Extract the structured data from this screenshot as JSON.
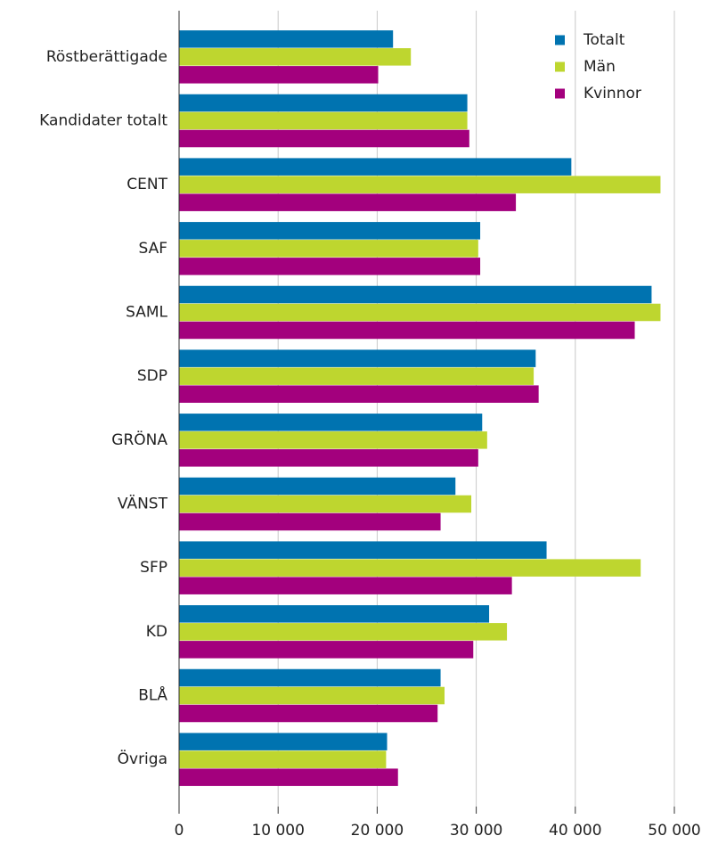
{
  "chart_data": {
    "type": "bar",
    "orientation": "horizontal",
    "categories": [
      "Röstberättigade",
      "Kandidater totalt",
      "CENT",
      "SAF",
      "SAML",
      "SDP",
      "GRÖNA",
      "VÄNST",
      "SFP",
      "KD",
      "BLÅ",
      "Övriga"
    ],
    "series": [
      {
        "name": "Totalt",
        "color": "#0073b0",
        "values": [
          21600,
          29100,
          39600,
          30400,
          47700,
          36000,
          30600,
          27900,
          37100,
          31300,
          26400,
          21000
        ]
      },
      {
        "name": "Män",
        "color": "#bed62f",
        "values": [
          23400,
          29100,
          48600,
          30200,
          48600,
          35800,
          31100,
          29500,
          46600,
          33100,
          26800,
          20900
        ]
      },
      {
        "name": "Kvinnor",
        "color": "#a3007d",
        "values": [
          20100,
          29300,
          34000,
          30400,
          46000,
          36300,
          30200,
          26400,
          33600,
          29700,
          26100,
          22100
        ]
      }
    ],
    "xlim": [
      0,
      50000
    ],
    "xticks": [
      0,
      {
        "value": 10000,
        "label": "10 000"
      },
      {
        "value": 20000,
        "label": "20 000"
      },
      {
        "value": 30000,
        "label": "30 000"
      },
      {
        "value": 40000,
        "label": "40 000"
      },
      {
        "value": 50000,
        "label": "50 000"
      }
    ],
    "grid": true,
    "legend": "top-right"
  }
}
